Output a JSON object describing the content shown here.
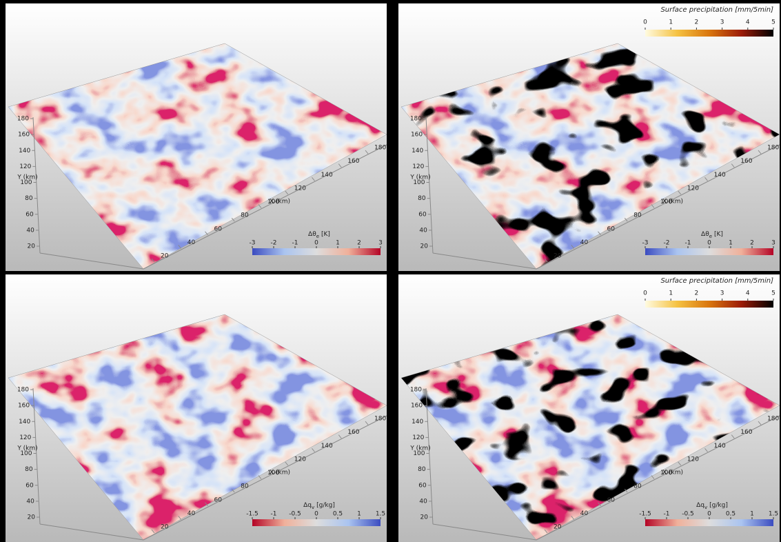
{
  "axes": {
    "x_title": "X (km)",
    "y_title": "Y (km)",
    "x_ticks": [
      20,
      40,
      60,
      80,
      100,
      120,
      140,
      160,
      180
    ],
    "y_ticks": [
      20,
      40,
      60,
      80,
      100,
      120,
      140,
      160,
      180
    ]
  },
  "panels": [
    {
      "field_colorbar": {
        "label": {
          "symbol": "Δθ",
          "sub": "e",
          "unit": "[K]"
        },
        "ticks": [
          -3,
          -2,
          -1,
          0,
          1,
          2,
          3
        ],
        "colors": [
          "#3b4cc0",
          "#aac4f0",
          "#dddddd",
          "#f0b09a",
          "#b40426"
        ]
      }
    },
    {
      "field_colorbar": {
        "label": {
          "symbol": "Δθ",
          "sub": "e",
          "unit": "[K]"
        },
        "ticks": [
          -3,
          -2,
          -1,
          0,
          1,
          2,
          3
        ],
        "colors": [
          "#3b4cc0",
          "#aac4f0",
          "#dddddd",
          "#f0b09a",
          "#b40426"
        ]
      },
      "precip_colorbar": {
        "title": "Surface precipitation [mm/5min]",
        "ticks": [
          0,
          1,
          2,
          3,
          4,
          5
        ],
        "colors": [
          "#fffbe0",
          "#f5c242",
          "#d9760e",
          "#9c1c08",
          "#000000"
        ]
      }
    },
    {
      "field_colorbar": {
        "label": {
          "symbol": "Δq",
          "sub": "v",
          "unit": "[g/kg]"
        },
        "ticks": [
          -1.5,
          -1,
          -0.5,
          0,
          0.5,
          1,
          1.5
        ],
        "colors": [
          "#b40426",
          "#f0b09a",
          "#dddddd",
          "#aac4f0",
          "#3b4cc0"
        ]
      }
    },
    {
      "field_colorbar": {
        "label": {
          "symbol": "Δq",
          "sub": "v",
          "unit": "[g/kg]"
        },
        "ticks": [
          -1.5,
          -1,
          -0.5,
          0,
          0.5,
          1,
          1.5
        ],
        "colors": [
          "#b40426",
          "#f0b09a",
          "#dddddd",
          "#aac4f0",
          "#3b4cc0"
        ]
      },
      "precip_colorbar": {
        "title": "Surface precipitation [mm/5min]",
        "ticks": [
          0,
          1,
          2,
          3,
          4,
          5
        ],
        "colors": [
          "#fffbe0",
          "#f5c242",
          "#d9760e",
          "#9c1c08",
          "#000000"
        ]
      }
    }
  ]
}
